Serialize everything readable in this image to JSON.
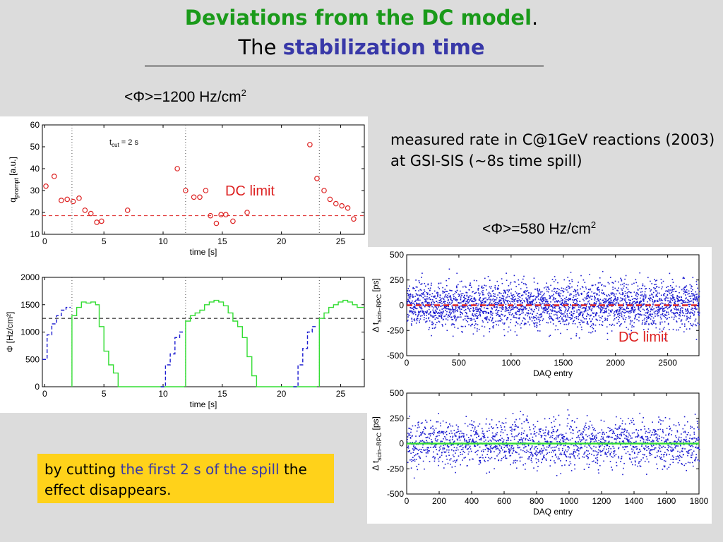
{
  "slide": {
    "title_line1": "Deviations from the DC model",
    "title_line1_end": ".",
    "title_line2_prefix": "The",
    "title_line2_emph": "stabilization time",
    "flux_left": "<Φ>=1200 Hz/cm",
    "flux_left_sup": "2",
    "flux_right": "<Φ>=580 Hz/cm",
    "flux_right_sup": "2",
    "note": "measured rate in C@1GeV reactions (2003) at GSI-SIS (~8s time spill)",
    "box_part1": "by cutting ",
    "box_highlight": "the first 2 s of the spill",
    "box_part2": " the effect disappears.",
    "dc_limit_label": "DC limit",
    "colors": {
      "title_green": "#1a9a1a",
      "emph_blue": "#3838a8",
      "dc_red": "#dd2222",
      "box_yellow": "#ffd21a",
      "points_blue": "#1a1ad0",
      "curve_green": "#33dd33"
    }
  },
  "chart_data": [
    {
      "type": "scatter",
      "xlabel": "time [s]",
      "ylabel": "q_prompt [a.u.]",
      "annotation": "t_cut = 2 s",
      "xlim": [
        -0.2,
        27
      ],
      "ylim": [
        10,
        60
      ],
      "xticks": [
        0,
        5,
        10,
        15,
        20,
        25
      ],
      "yticks": [
        10,
        20,
        30,
        40,
        50,
        60
      ],
      "dc_limit": 18.5,
      "vlines": [
        2.3,
        11.9,
        23.2
      ],
      "x": [
        0.1,
        0.8,
        1.4,
        1.9,
        2.4,
        2.9,
        3.4,
        3.9,
        4.4,
        4.8,
        7.0,
        11.2,
        11.9,
        12.6,
        13.1,
        13.6,
        14.0,
        14.5,
        14.9,
        15.3,
        15.9,
        17.1,
        22.4,
        23.0,
        23.6,
        24.1,
        24.6,
        25.1,
        25.6,
        26.1
      ],
      "y": [
        32,
        36.5,
        25.5,
        26,
        25,
        26.5,
        21,
        19.5,
        15.5,
        16,
        21,
        40,
        30,
        27,
        27,
        30,
        18.5,
        15,
        19,
        19,
        16,
        20,
        51,
        35.5,
        30,
        26,
        24,
        23,
        22,
        17
      ],
      "grid": false
    },
    {
      "type": "line",
      "xlabel": "time [s]",
      "ylabel": "Φ [Hz/cm²]",
      "xlim": [
        -0.2,
        27
      ],
      "ylim": [
        0,
        2000
      ],
      "xticks": [
        0,
        5,
        10,
        15,
        20,
        25
      ],
      "yticks": [
        0,
        500,
        1000,
        1500,
        2000
      ],
      "dc_average": 1250,
      "series": [
        {
          "x": [
            -0.2,
            0.2,
            0.2,
            0.6,
            0.6,
            1.0,
            1.0,
            1.4,
            1.4,
            1.8,
            1.8,
            2.2
          ],
          "y": [
            500,
            500,
            950,
            950,
            1150,
            1150,
            1300,
            1300,
            1400,
            1400,
            1450,
            1450
          ]
        },
        {
          "x": [
            2.3,
            2.3,
            2.7,
            2.7,
            3.1,
            3.1,
            3.5,
            3.5,
            3.9,
            3.9,
            4.3,
            4.3,
            4.6,
            4.6,
            5.0,
            5.0,
            5.4,
            5.4,
            5.8,
            5.8,
            6.2,
            6.2,
            11.8
          ],
          "y": [
            0,
            1300,
            1300,
            1450,
            1450,
            1550,
            1550,
            1530,
            1530,
            1550,
            1550,
            1500,
            1500,
            1100,
            1100,
            650,
            650,
            400,
            400,
            250,
            250,
            0,
            0
          ]
        },
        {
          "x": [
            9.8,
            10.2,
            10.2,
            10.6,
            10.6,
            11.0,
            11.0,
            11.4,
            11.4,
            11.8
          ],
          "y": [
            0,
            0,
            400,
            400,
            600,
            600,
            900,
            900,
            1000,
            1000
          ]
        },
        {
          "x": [
            11.9,
            11.9,
            12.3,
            12.3,
            12.7,
            12.7,
            13.1,
            13.1,
            13.5,
            13.5,
            13.9,
            13.9,
            14.3,
            14.3,
            14.7,
            14.7,
            15.1,
            15.1,
            15.5,
            15.5,
            15.9,
            15.9,
            16.3,
            16.3,
            16.7,
            16.7,
            17.1,
            17.1,
            17.5,
            17.5,
            17.9,
            17.9,
            23.0
          ],
          "y": [
            0,
            1200,
            1200,
            1300,
            1300,
            1350,
            1350,
            1400,
            1400,
            1500,
            1500,
            1550,
            1550,
            1580,
            1580,
            1550,
            1550,
            1480,
            1480,
            1350,
            1350,
            1200,
            1200,
            1100,
            1100,
            900,
            900,
            550,
            550,
            200,
            200,
            0,
            0
          ]
        },
        {
          "x": [
            21.0,
            21.4,
            21.4,
            21.8,
            21.8,
            22.2,
            22.2,
            22.6,
            22.6,
            23.0
          ],
          "y": [
            0,
            0,
            400,
            400,
            700,
            700,
            1000,
            1000,
            1100,
            1100
          ]
        },
        {
          "x": [
            23.2,
            23.2,
            23.6,
            23.6,
            24.0,
            24.0,
            24.4,
            24.4,
            24.8,
            24.8,
            25.2,
            25.2,
            25.6,
            25.6,
            26.0,
            26.0,
            26.4,
            26.4,
            27.0
          ],
          "y": [
            0,
            1250,
            1250,
            1350,
            1350,
            1450,
            1450,
            1500,
            1500,
            1550,
            1550,
            1580,
            1580,
            1550,
            1550,
            1500,
            1500,
            1450,
            1450
          ]
        }
      ],
      "series_styles": [
        "dashed-blue",
        "solid-green",
        "dashed-blue",
        "solid-green",
        "dashed-blue",
        "solid-green"
      ],
      "grid": false
    },
    {
      "type": "scatter",
      "xlabel": "DAQ entry",
      "ylabel": "Δ t_scin-RPC [ps]",
      "xlim": [
        0,
        2800
      ],
      "ylim": [
        -500,
        500
      ],
      "xticks": [
        0,
        500,
        1000,
        1500,
        2000,
        2500
      ],
      "yticks": [
        -500,
        -250,
        0,
        250,
        500
      ],
      "ref_line": 0,
      "ref_line_color": "red",
      "n_points": 2800,
      "spread_ps": 190,
      "grid": false
    },
    {
      "type": "scatter",
      "xlabel": "DAQ entry",
      "ylabel": "Δ t_scin-RPC [ps]",
      "xlim": [
        0,
        1800
      ],
      "ylim": [
        -500,
        500
      ],
      "xticks": [
        0,
        200,
        400,
        600,
        800,
        1000,
        1200,
        1400,
        1600,
        1800
      ],
      "yticks": [
        -500,
        -250,
        0,
        250,
        500
      ],
      "ref_line": 0,
      "ref_line_color": "green",
      "n_points": 1800,
      "spread_ps": 190,
      "grid": false
    }
  ]
}
